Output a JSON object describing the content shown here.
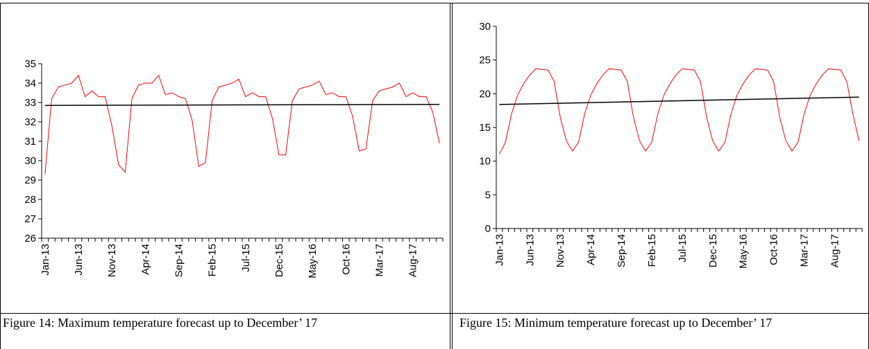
{
  "captions": {
    "left": "Figure 14: Maximum temperature forecast up to December’ 17",
    "right": "Figure 15: Minimum temperature forecast up to December’ 17"
  },
  "chart_data": [
    {
      "type": "line",
      "title": "",
      "xlabel": "",
      "ylabel": "",
      "ylim": [
        26,
        35
      ],
      "yticks": [
        26,
        27,
        28,
        29,
        30,
        31,
        32,
        33,
        34,
        35
      ],
      "x_tick_labels": [
        "Jan-13",
        "Jun-13",
        "Nov-13",
        "Apr-14",
        "Sep-14",
        "Feb-15",
        "Jul-15",
        "Dec-15",
        "May-16",
        "Oct-16",
        "Mar-17",
        "Aug-17"
      ],
      "x_start": "Jan-13",
      "x_end": "Dec-17",
      "grid": false,
      "legend": "none",
      "series": [
        {
          "color": "#ff0000",
          "values": [
            29.3,
            33.2,
            33.8,
            33.9,
            34.0,
            34.4,
            33.3,
            33.6,
            33.3,
            33.3,
            31.8,
            29.8,
            29.4,
            33.2,
            33.9,
            34.0,
            34.0,
            34.4,
            33.4,
            33.5,
            33.3,
            33.2,
            32.1,
            29.7,
            29.9,
            33.1,
            33.8,
            33.9,
            34.0,
            34.2,
            33.3,
            33.5,
            33.3,
            33.3,
            32.2,
            30.3,
            30.3,
            33.1,
            33.7,
            33.8,
            33.9,
            34.1,
            33.4,
            33.5,
            33.3,
            33.3,
            32.3,
            30.5,
            30.6,
            33.1,
            33.6,
            33.7,
            33.8,
            34.0,
            33.3,
            33.5,
            33.3,
            33.3,
            32.5,
            30.9
          ]
        },
        {
          "color": "#000000",
          "values": [
            32.85,
            32.9
          ]
        }
      ]
    },
    {
      "type": "line",
      "title": "",
      "xlabel": "",
      "ylabel": "",
      "ylim": [
        0,
        30
      ],
      "yticks": [
        0,
        5,
        10,
        15,
        20,
        25,
        30
      ],
      "x_tick_labels": [
        "Jan-13",
        "Jun-13",
        "Nov-13",
        "Apr-14",
        "Sep-14",
        "Feb-15",
        "Jul-15",
        "Dec-15",
        "May-16",
        "Oct-16",
        "Mar-17",
        "Aug-17"
      ],
      "x_start": "Jan-13",
      "x_end": "Dec-17",
      "grid": false,
      "legend": "none",
      "series": [
        {
          "color": "#ff0000",
          "values": [
            11.0,
            12.8,
            17.0,
            19.8,
            21.5,
            22.8,
            23.7,
            23.6,
            23.5,
            21.8,
            16.5,
            13.0,
            11.5,
            12.8,
            17.0,
            19.8,
            21.5,
            22.8,
            23.7,
            23.6,
            23.5,
            21.8,
            16.5,
            13.0,
            11.5,
            12.8,
            17.0,
            19.8,
            21.5,
            22.8,
            23.7,
            23.6,
            23.5,
            21.8,
            16.5,
            13.0,
            11.5,
            12.8,
            17.0,
            19.8,
            21.5,
            22.8,
            23.7,
            23.6,
            23.5,
            21.8,
            16.5,
            13.0,
            11.5,
            12.8,
            17.0,
            19.8,
            21.5,
            22.8,
            23.7,
            23.6,
            23.5,
            21.8,
            17.0,
            13.0
          ]
        },
        {
          "color": "#000000",
          "values": [
            18.4,
            19.5
          ]
        }
      ]
    }
  ]
}
